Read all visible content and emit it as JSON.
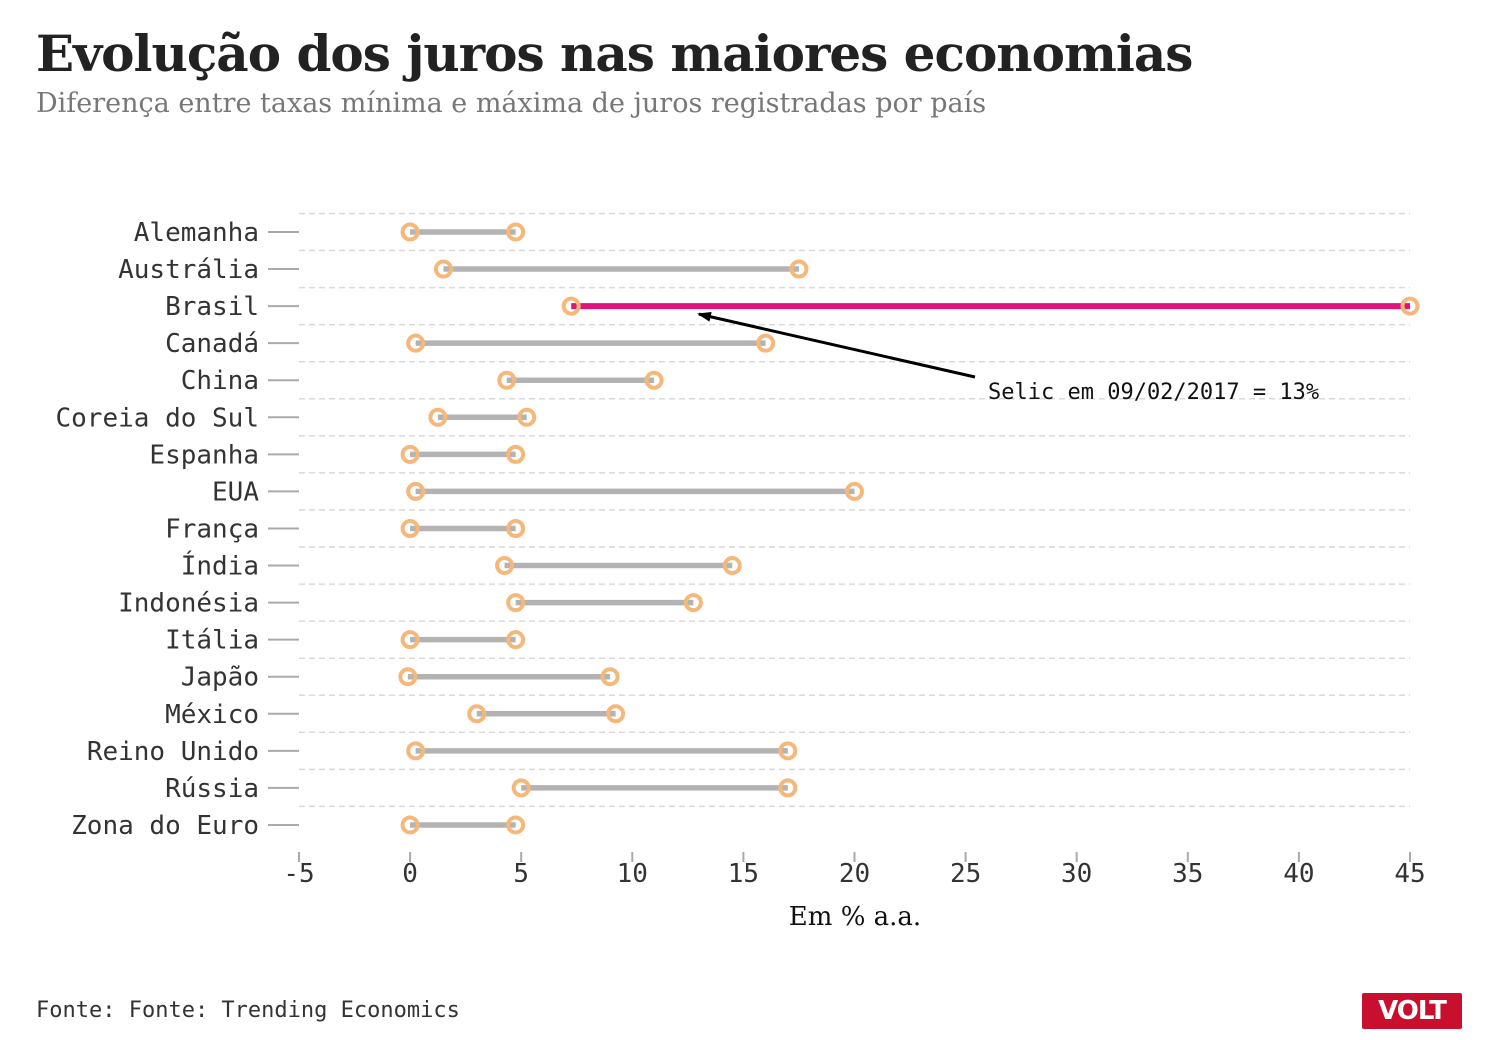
{
  "title": "Evolução dos juros nas maiores economias",
  "subtitle": "Diferença entre taxas mínima e máxima de juros registradas por país",
  "source": "Fonte: Fonte: Trending Economics",
  "logo": "VOLT",
  "colors": {
    "range": "#b3b3b3",
    "highlight": "#e0137c",
    "marker": "#f5b87a",
    "grid": "#d9d9d9",
    "annotation": "#000000"
  },
  "chart_data": {
    "type": "dumbbell",
    "xlabel": "Em % a.a.",
    "xlim": [
      -5,
      45
    ],
    "xticks": [
      -5,
      0,
      5,
      10,
      15,
      20,
      25,
      30,
      35,
      40,
      45
    ],
    "grid": "horizontal dashed",
    "highlight": "Brasil",
    "categories": [
      "Alemanha",
      "Austrália",
      "Brasil",
      "Canadá",
      "China",
      "Coreia do Sul",
      "Espanha",
      "EUA",
      "França",
      "Índia",
      "Indonésia",
      "Itália",
      "Japão",
      "México",
      "Reino Unido",
      "Rússia",
      "Zona do Euro"
    ],
    "min": [
      0,
      1.5,
      7.25,
      0.25,
      4.35,
      1.25,
      0,
      0.25,
      0,
      4.25,
      4.75,
      0,
      -0.1,
      3,
      0.25,
      5,
      0
    ],
    "max": [
      4.75,
      17.5,
      45,
      16,
      10.98,
      5.25,
      4.75,
      20,
      4.75,
      14.5,
      12.75,
      4.75,
      9,
      9.25,
      17,
      17,
      4.75
    ],
    "annotation": {
      "text": "Selic em 09/02/2017 = 13%",
      "category": "Brasil",
      "x": 13
    }
  }
}
